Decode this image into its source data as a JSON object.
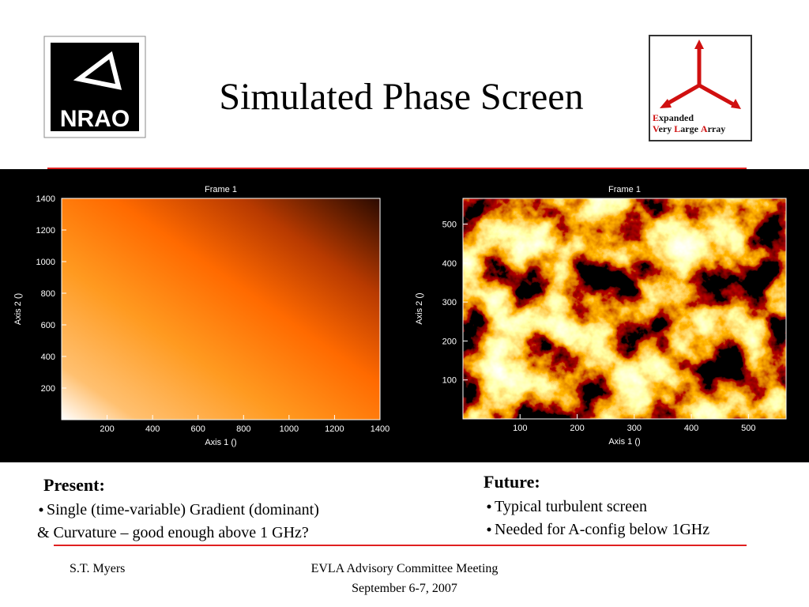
{
  "header": {
    "title": "Simulated Phase Screen",
    "nrao_logo": "NRAO",
    "evla_logo": {
      "line1": [
        "Expanded"
      ],
      "line2": [
        "Very",
        "Large",
        "Array"
      ]
    }
  },
  "panels": [
    {
      "title": "Frame 1",
      "x_label": "Axis 1 ()",
      "y_label": "Axis 2 ()",
      "xlim": [
        0,
        1400
      ],
      "ylim": [
        0,
        1400
      ],
      "xticks": [
        200,
        400,
        600,
        800,
        1000,
        1200,
        1400
      ],
      "yticks": [
        200,
        400,
        600,
        800,
        1000,
        1200,
        1400
      ]
    },
    {
      "title": "Frame 1",
      "x_label": "Axis 1 ()",
      "y_label": "Axis 2 ()",
      "xlim": [
        0,
        566
      ],
      "ylim": [
        0,
        566
      ],
      "xticks": [
        100,
        200,
        300,
        400,
        500
      ],
      "yticks": [
        100,
        200,
        300,
        400,
        500
      ]
    }
  ],
  "present": {
    "heading": "Present:",
    "items": [
      "Single (time-variable) Gradient (dominant)"
    ],
    "continuation": "& Curvature – good enough above 1 GHz?"
  },
  "future": {
    "heading": "Future:",
    "items": [
      "Typical turbulent screen",
      "Needed for A-config below 1GHz"
    ]
  },
  "footer": {
    "author": "S.T. Myers",
    "event": "EVLA Advisory Committee Meeting",
    "date": "September 6-7, 2007"
  }
}
